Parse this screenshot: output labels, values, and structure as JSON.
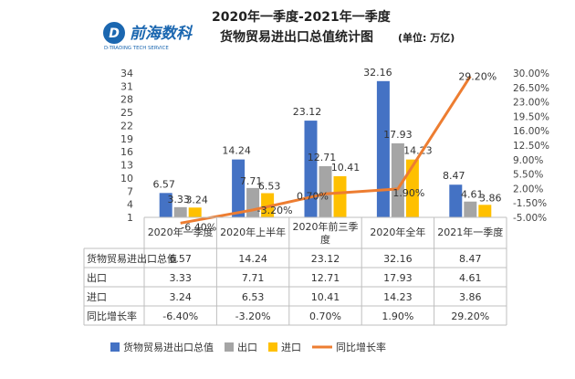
{
  "logo": {
    "name_cn": "前海数科",
    "name_en": "D-TRADING TECH SERVICE",
    "letter": "D"
  },
  "title": {
    "line1": "2020年一季度-2021年一季度",
    "line2": "货物贸易进出口总值统计图",
    "unit": "(单位: 万亿)"
  },
  "chart_data": {
    "type": "bar",
    "title": "2020年一季度-2021年一季度 货物贸易进出口总值统计图",
    "categories": [
      "2020年一季度",
      "2020年上半年",
      "2020年前三季度",
      "2020年全年",
      "2021年一季度"
    ],
    "series": [
      {
        "name": "货物贸易进出口总值",
        "type": "bar",
        "axis": "left",
        "values": [
          6.57,
          14.24,
          23.12,
          32.16,
          8.47
        ],
        "labels": [
          "6.57",
          "14.24",
          "23.12",
          "32.16",
          "8.47"
        ],
        "color": "#4472c4"
      },
      {
        "name": "出口",
        "type": "bar",
        "axis": "left",
        "values": [
          3.33,
          7.71,
          12.71,
          17.93,
          4.61
        ],
        "labels": [
          "3.33",
          "7.71",
          "12.71",
          "17.93",
          "4.61"
        ],
        "color": "#a5a5a5"
      },
      {
        "name": "进口",
        "type": "bar",
        "axis": "left",
        "values": [
          3.24,
          6.53,
          10.41,
          14.23,
          3.86
        ],
        "labels": [
          "3.24",
          "6.53",
          "10.41",
          "14.23",
          "3.86"
        ],
        "color": "#ffc000"
      },
      {
        "name": "同比增长率",
        "type": "line",
        "axis": "right",
        "values": [
          -6.4,
          -3.2,
          0.7,
          1.9,
          29.2
        ],
        "labels": [
          "-6.40%",
          "-3.20%",
          "0.70%",
          "1.90%",
          "29.20%"
        ],
        "color": "#ed7d31"
      }
    ],
    "y_left": {
      "ticks": [
        "1",
        "4",
        "7",
        "10",
        "13",
        "16",
        "19",
        "22",
        "25",
        "28",
        "31",
        "34"
      ],
      "min": 1,
      "max": 34
    },
    "y_right": {
      "ticks": [
        "-5.00%",
        "-1.50%",
        "2.00%",
        "5.50%",
        "9.00%",
        "12.50%",
        "16.00%",
        "19.50%",
        "23.00%",
        "26.50%",
        "30.00%"
      ],
      "min": -5,
      "max": 30
    },
    "data_table": {
      "rows": [
        {
          "label": "货物贸易进出口总值",
          "cells": [
            "6.57",
            "14.24",
            "23.12",
            "32.16",
            "8.47"
          ]
        },
        {
          "label": "出口",
          "cells": [
            "3.33",
            "7.71",
            "12.71",
            "17.93",
            "4.61"
          ]
        },
        {
          "label": "进口",
          "cells": [
            "3.24",
            "6.53",
            "10.41",
            "14.23",
            "3.86"
          ]
        },
        {
          "label": "同比增长率",
          "cells": [
            "-6.40%",
            "-3.20%",
            "0.70%",
            "1.90%",
            "29.20%"
          ]
        }
      ]
    },
    "legend_position": "bottom",
    "grid": false
  }
}
